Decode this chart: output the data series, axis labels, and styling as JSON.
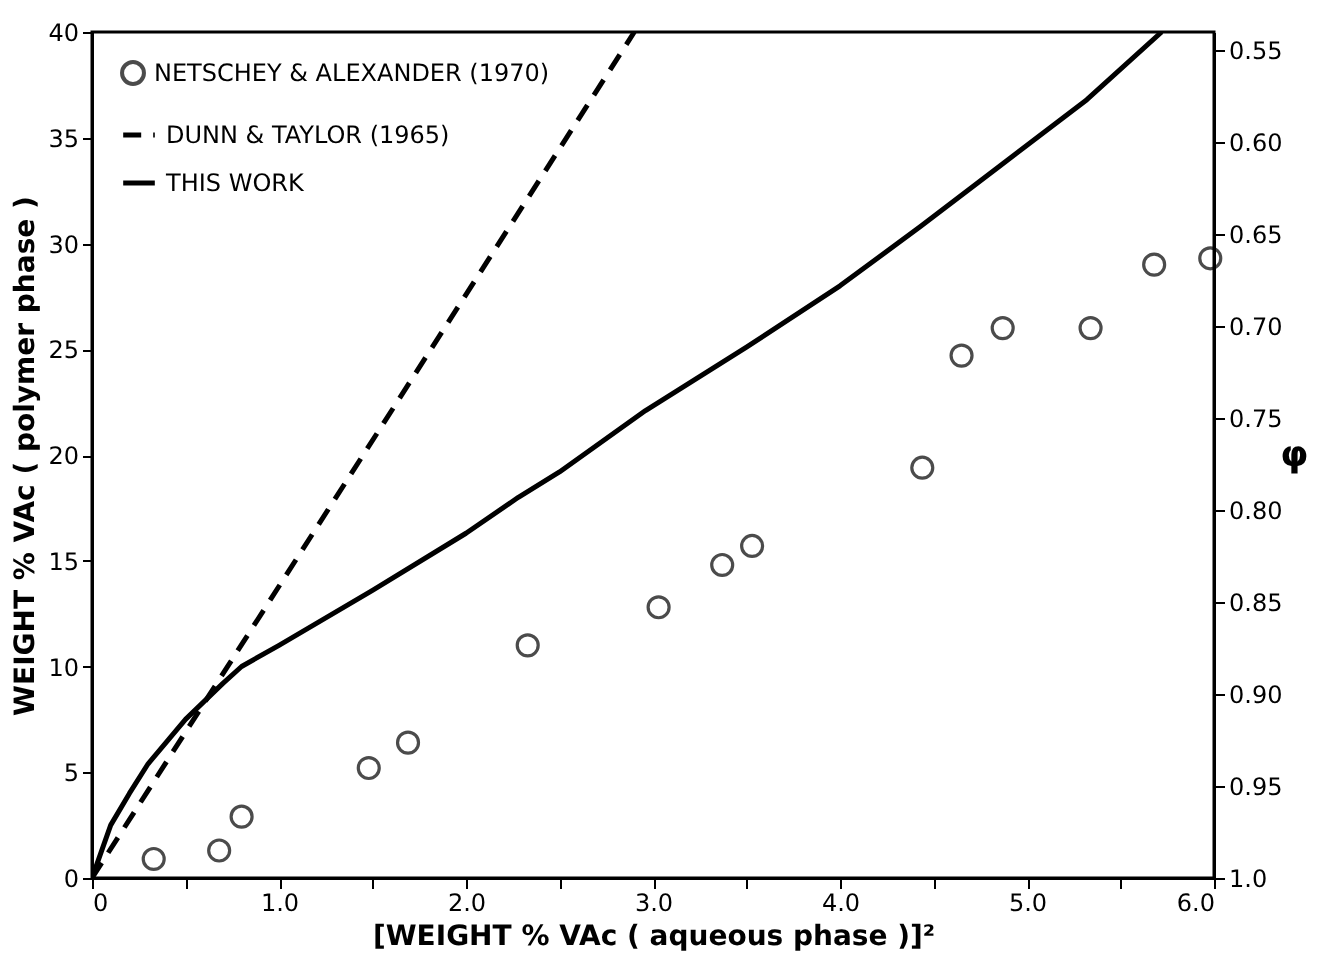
{
  "chart_data": {
    "type": "line",
    "xlabel": "[WEIGHT % VAc ( aqueous phase )]²",
    "ylabel": "WEIGHT % VAc ( polymer phase )",
    "y2label": "φ",
    "xlim": [
      0,
      6
    ],
    "ylim": [
      0,
      40
    ],
    "y2lim": [
      1.0,
      0.54
    ],
    "xticks": [
      {
        "value": 0,
        "label": "0"
      },
      {
        "value": 0.5,
        "label": null
      },
      {
        "value": 1,
        "label": "1.0"
      },
      {
        "value": 1.5,
        "label": null
      },
      {
        "value": 2,
        "label": "2.0"
      },
      {
        "value": 2.5,
        "label": null
      },
      {
        "value": 3,
        "label": "3.0"
      },
      {
        "value": 3.5,
        "label": null
      },
      {
        "value": 4,
        "label": "4.0"
      },
      {
        "value": 4.5,
        "label": null
      },
      {
        "value": 5,
        "label": "5.0"
      },
      {
        "value": 5.5,
        "label": null
      },
      {
        "value": 6,
        "label": "6.0"
      }
    ],
    "yticks": [
      0,
      5,
      10,
      15,
      20,
      25,
      30,
      35,
      40
    ],
    "y2ticks": [
      {
        "value": 1.0,
        "label": "1.0"
      },
      {
        "value": 0.95,
        "label": "0.95"
      },
      {
        "value": 0.9,
        "label": "0.90"
      },
      {
        "value": 0.85,
        "label": "0.85"
      },
      {
        "value": 0.8,
        "label": "0.80"
      },
      {
        "value": 0.75,
        "label": "0.75"
      },
      {
        "value": 0.7,
        "label": "0.70"
      },
      {
        "value": 0.65,
        "label": "0.65"
      },
      {
        "value": 0.6,
        "label": "0.60"
      },
      {
        "value": 0.55,
        "label": "0.55"
      }
    ],
    "grid": false,
    "legend": "top left",
    "series": [
      {
        "name": "NETSCHEY & ALEXANDER (1970)",
        "type": "scatter",
        "marker": "circle",
        "color": "#000000",
        "x": [
          0.33,
          0.68,
          0.8,
          1.48,
          1.69,
          2.33,
          3.03,
          3.37,
          3.53,
          4.44,
          4.65,
          4.87,
          5.34,
          5.68,
          5.98
        ],
        "values": [
          0.9,
          1.3,
          2.9,
          5.2,
          6.4,
          11.0,
          12.8,
          14.8,
          15.7,
          19.4,
          24.7,
          26.0,
          26.0,
          29.0,
          29.3
        ]
      },
      {
        "name": "DUNN & TAYLOR (1965)",
        "type": "line",
        "line_style": "dashed",
        "color": "#000000",
        "x": [
          0,
          2.9
        ],
        "values": [
          0,
          40
        ]
      },
      {
        "name": "THIS WORK",
        "type": "line",
        "line_style": "solid",
        "color": "#000000",
        "x": [
          0,
          0.1,
          0.2,
          0.3,
          0.5,
          0.7,
          0.8,
          1.0,
          1.5,
          2.0,
          2.28,
          2.5,
          2.96,
          3.5,
          4.0,
          4.43,
          4.86,
          5.32,
          5.72
        ],
        "values": [
          0,
          2.5,
          4.0,
          5.4,
          7.5,
          9.2,
          10.0,
          11.0,
          13.6,
          16.3,
          18.0,
          19.2,
          22.1,
          25.1,
          28.0,
          30.8,
          33.7,
          36.8,
          40
        ]
      }
    ]
  }
}
